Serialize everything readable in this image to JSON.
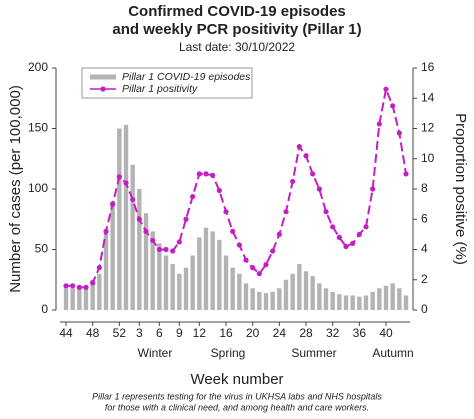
{
  "chart_data": {
    "type": "bar_line",
    "title": [
      "Confirmed COVID-19 episodes",
      "and weekly PCR positivity (Pillar 1)"
    ],
    "subtitle": "Last date: 30/10/2022",
    "x_label": "Week number",
    "y_label": "Number of cases (per 100,000)",
    "y2_label": "Proportion positive (%)",
    "seasons": [
      "Winter",
      "Spring",
      "Summer",
      "Autumn"
    ],
    "footnote": [
      "Pillar 1 represents testing for the virus in UKHSA labs and NHS hospitals",
      "for those with a clinical need, and among health and care workers."
    ],
    "categories": [
      "44",
      null,
      null,
      null,
      "48",
      null,
      null,
      null,
      "52",
      null,
      null,
      "3",
      null,
      null,
      "6",
      null,
      null,
      "9",
      null,
      null,
      "12",
      null,
      null,
      null,
      "16",
      null,
      null,
      null,
      "20",
      null,
      null,
      null,
      "24",
      null,
      null,
      null,
      "28",
      null,
      null,
      null,
      "32",
      null,
      null,
      null,
      "36",
      null,
      null,
      null,
      "40",
      null,
      null,
      null
    ],
    "ylim": [
      0,
      200
    ],
    "yticks": [
      0,
      50,
      100,
      150,
      200
    ],
    "y2lim": [
      0,
      16
    ],
    "y2ticks": [
      0,
      2,
      4,
      6,
      8,
      10,
      12,
      14,
      16
    ],
    "legend": "top-left",
    "series": [
      {
        "name": "Pillar 1 COVID-19 episodes",
        "type": "bar",
        "color": "#b3b3b3",
        "values": [
          18,
          18,
          18,
          19,
          25,
          30,
          65,
          90,
          150,
          153,
          120,
          100,
          80,
          65,
          55,
          45,
          38,
          30,
          35,
          45,
          60,
          68,
          65,
          58,
          45,
          35,
          30,
          22,
          18,
          15,
          14,
          15,
          18,
          25,
          30,
          38,
          32,
          28,
          22,
          18,
          15,
          13,
          12,
          12,
          11,
          12,
          15,
          18,
          20,
          22,
          18,
          12
        ]
      },
      {
        "name": "Pillar 1 positivity",
        "type": "line",
        "axis": "y2",
        "color": "#c41fc4",
        "values": [
          1.6,
          1.6,
          1.5,
          1.5,
          1.8,
          2.8,
          5.2,
          7,
          8.8,
          8.4,
          7.3,
          6.0,
          5.2,
          4.6,
          4.0,
          4.0,
          3.9,
          4.5,
          6.0,
          7.5,
          9.0,
          9.0,
          8.9,
          7.9,
          6.5,
          5.2,
          4.3,
          3.3,
          2.8,
          2.4,
          3.0,
          3.9,
          5.0,
          6.5,
          8.5,
          10.8,
          10.2,
          9.0,
          8.0,
          6.5,
          5.5,
          4.8,
          4.2,
          4.4,
          5.0,
          5.5,
          8.0,
          12.3,
          14.6,
          13.5,
          11.7,
          9.0
        ]
      }
    ]
  }
}
